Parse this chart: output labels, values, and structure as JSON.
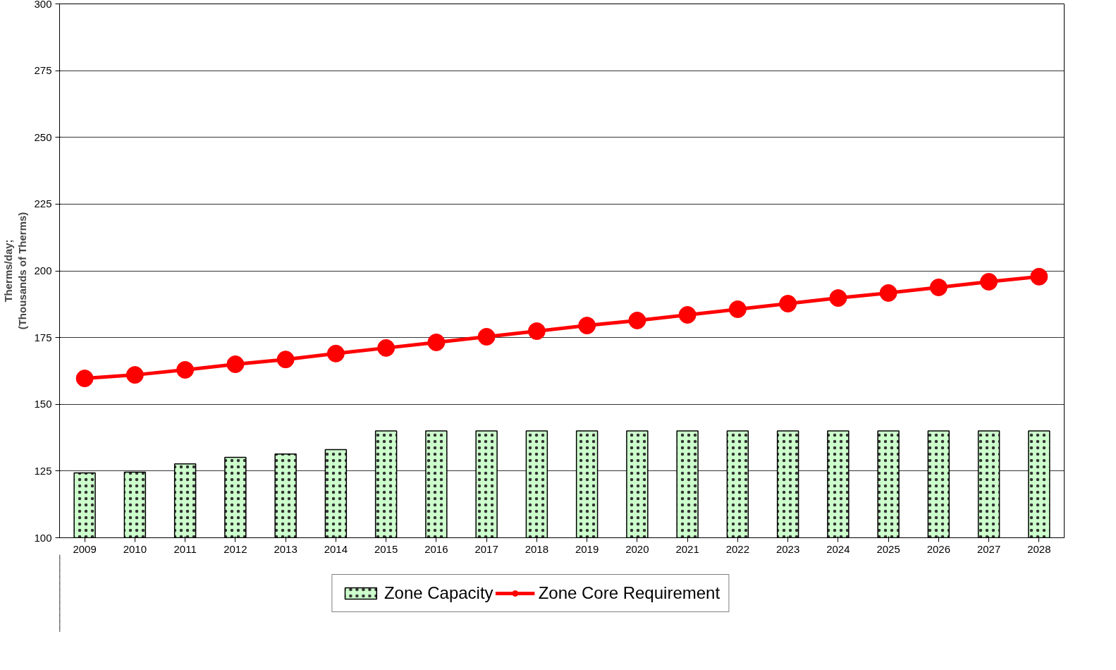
{
  "chart_data": {
    "type": "bar",
    "ylabel": "Therms/day;\n(Thousands of Therms)",
    "categories": [
      "2009",
      "2010",
      "2011",
      "2012",
      "2013",
      "2014",
      "2015",
      "2016",
      "2017",
      "2018",
      "2019",
      "2020",
      "2021",
      "2022",
      "2023",
      "2024",
      "2025",
      "2026",
      "2027",
      "2028"
    ],
    "series": [
      {
        "name": "Zone Capacity",
        "color": "#ccffcc",
        "values": [
          124.3,
          124.6,
          127.7,
          130.1,
          131.4,
          133,
          140,
          140,
          140,
          140,
          140,
          140,
          140,
          140,
          140,
          140,
          140,
          140,
          140,
          140
        ]
      },
      {
        "name": "Zone Core Requirement",
        "type": "line",
        "color": "#ff0000",
        "values": [
          159.7,
          161,
          162.9,
          165,
          166.8,
          169,
          171.1,
          173.2,
          175.3,
          177.4,
          179.5,
          181.4,
          183.5,
          185.6,
          187.7,
          189.8,
          191.7,
          193.8,
          195.9,
          197.8
        ]
      }
    ],
    "ylim": [
      100,
      300
    ],
    "yticks": [
      100,
      125,
      150,
      175,
      200,
      225,
      250,
      275,
      300
    ],
    "grid": "y",
    "legend": "bottom",
    "marker": "circle"
  }
}
